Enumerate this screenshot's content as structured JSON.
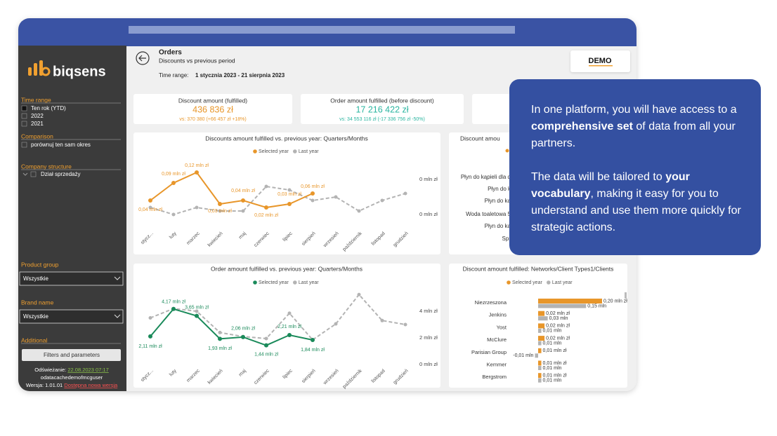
{
  "sidebar": {
    "logo": "biqsens",
    "time_range": {
      "title": "Time range",
      "options": [
        "Ten rok (YTD)",
        "2022",
        "2021"
      ]
    },
    "comparison": {
      "title": "Comparison",
      "options": [
        "porównuj ten sam okres"
      ]
    },
    "company_structure": {
      "title": "Company structure",
      "options": [
        "Dział sprzedaży"
      ]
    },
    "product_group": {
      "title": "Product group",
      "value": "Wszystkie"
    },
    "brand_name": {
      "title": "Brand name",
      "value": "Wszystkie"
    },
    "additional": {
      "title": "Additional",
      "button": "Filters and parameters"
    },
    "footer": {
      "refresh_label": "Odświeżanie:",
      "refresh_date": "22.08.2023 07:17",
      "user": "odatacachedemofmcguser",
      "version": "Wersja: 1.01.01",
      "new_version": "Dostępna nowa wersja"
    }
  },
  "header": {
    "title": "Orders",
    "subtitle": "Discounts vs previous period",
    "time_range_label": "Time range:",
    "time_range": "1 stycznia 2023 - 21 sierpnia 2023",
    "demo": "DEMO"
  },
  "kpis": [
    {
      "title": "Discount amount (fulfilled)",
      "value": "436 836 zł",
      "comparison": "vs: 370 380 (+66 457 zł +18%)"
    },
    {
      "title": "Order amount fulfilled (before discount)",
      "value": "17 216 422 zł",
      "comparison": "vs: 34 553 116 zł (-17 336 756 zł -50%)"
    }
  ],
  "charts": [
    {
      "type": "line",
      "title": "Discounts amount fulfilled vs. previous year: Quarters/Months",
      "categories": [
        "stycz...",
        "luty",
        "marzec",
        "kwiecień",
        "maj",
        "czerwiec",
        "lipiec",
        "sierpień",
        "wrzesień",
        "październik",
        "listopad",
        "grudzień"
      ],
      "series": [
        {
          "name": "Selected year",
          "color": "#e8962a",
          "values": [
            0.04,
            0.09,
            0.12,
            0.03,
            0.04,
            0.02,
            0.03,
            0.06,
            null,
            null,
            null,
            null
          ],
          "value_labels": [
            "0,04 mln zł",
            "0,09 mln zł",
            "0,12 mln zł",
            "0,03 mln zł",
            "0,04 mln zł",
            "0,02 mln zł",
            "0,03 mln zł",
            "0,06 mln zł",
            null,
            null,
            null,
            null
          ]
        },
        {
          "name": "Last year",
          "color": "#b3b3b3",
          "values": [
            0.02,
            0.0,
            0.02,
            0.01,
            0.01,
            0.08,
            0.07,
            0.04,
            0.05,
            0.01,
            0.04,
            0.06
          ]
        }
      ],
      "ylim": [
        -0.01,
        0.13
      ],
      "yticks": [
        {
          "value": 0,
          "label": "0 mln zł"
        },
        {
          "value": 0.1,
          "label": "0 mln zł"
        }
      ]
    },
    {
      "type": "line",
      "title": "Order amount fulfilled vs. previous year: Quarters/Months",
      "categories": [
        "stycz...",
        "luty",
        "marzec",
        "kwiecień",
        "maj",
        "czerwiec",
        "lipiec",
        "sierpień",
        "wrzesień",
        "październik",
        "listopad",
        "grudzień"
      ],
      "series": [
        {
          "name": "Selected year",
          "color": "#1a8a5a",
          "values": [
            2.11,
            4.17,
            3.65,
            1.93,
            2.06,
            1.44,
            2.21,
            1.84,
            null,
            null,
            null,
            null
          ],
          "value_labels": [
            "2,11 mln zł",
            "4,17 mln zł",
            "3,65 mln zł",
            "1,93 mln zł",
            "2,06 mln zł",
            "1,44 mln zł",
            "2,21 mln zł",
            "1,84 mln zł",
            null,
            null,
            null,
            null
          ]
        },
        {
          "name": "Last year",
          "color": "#b3b3b3",
          "values": [
            3.5,
            4.2,
            4.0,
            2.4,
            2.1,
            1.95,
            3.85,
            1.85,
            3.05,
            5.25,
            3.3,
            3.0
          ]
        }
      ],
      "ylim": [
        0,
        5.5
      ],
      "yticks": [
        {
          "value": 0,
          "label": "0 mln zł"
        },
        {
          "value": 2,
          "label": "2 mln zł"
        },
        {
          "value": 4,
          "label": "4 mln zł"
        }
      ]
    },
    {
      "type": "barh",
      "title": "Discount amount fulfilled: Networks/Client Types1/Clients",
      "categories": [
        "Niezrzeszona",
        "Jenkins",
        "Yost",
        "McClure",
        "Parisian Group",
        "Kemmer",
        "Bergstrom"
      ],
      "series": [
        {
          "name": "Selected year",
          "color": "#e8962a",
          "values": [
            0.2,
            0.02,
            0.02,
            0.02,
            0.01,
            0.01,
            0.01
          ],
          "value_labels": [
            "0,20 mln zł",
            "0,02 mln zł",
            "0,02 mln zł",
            "0,02 mln zł",
            "0,01 mln zł",
            "0,01 mln zł",
            "0,01 mln zł"
          ]
        },
        {
          "name": "Last year",
          "color": "#b3b3b3",
          "values": [
            0.15,
            0.03,
            0.01,
            0.01,
            -0.01,
            0.01,
            0.01
          ],
          "value_labels": [
            "0,15 mln",
            "0,03 mln",
            "0,01 mln",
            "0,01 mln",
            "-0,01 mln",
            "0,01 mln",
            "0,01 mln"
          ]
        }
      ]
    }
  ],
  "hidden_panel": {
    "title": "Discount amou",
    "categories": [
      "Płyn do kąpieli dla d",
      "Płyn do k",
      "Płyn do ką",
      "Woda toaletowa 5",
      "Płyn do ką",
      "Spr"
    ]
  },
  "callout": {
    "paragraphs": [
      [
        {
          "text": "In one platform, you will have access to a "
        },
        {
          "text": "comprehensive set",
          "bold": true
        },
        {
          "text": " of data from all your partners."
        }
      ],
      [
        {
          "text": "The data will be tailored to "
        },
        {
          "text": "your vocabulary",
          "bold": true
        },
        {
          "text": ", making it easy for you to understand and use them more quickly for strategic actions."
        }
      ]
    ]
  }
}
